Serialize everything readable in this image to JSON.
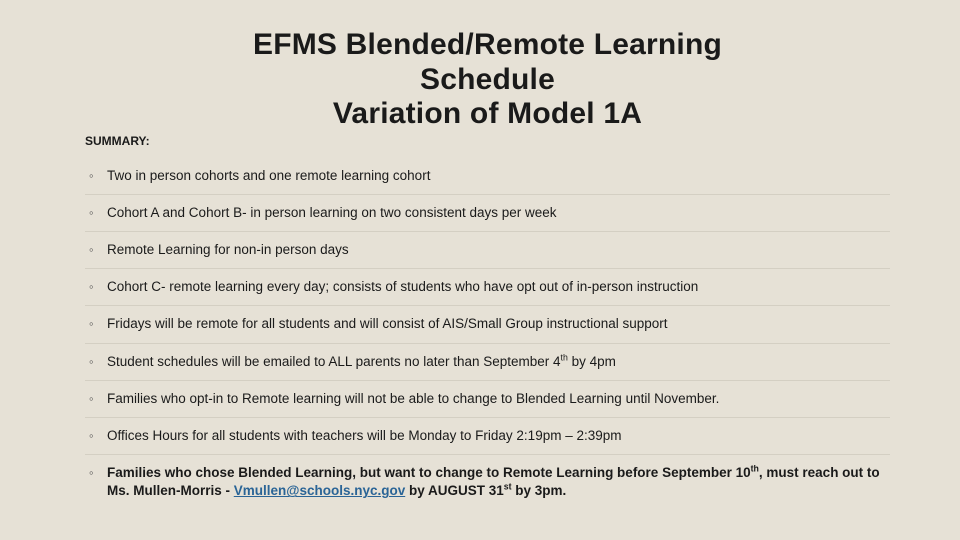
{
  "title": {
    "line1": "EFMS  Blended/Remote Learning",
    "line2": "Schedule",
    "line3": "Variation of Model 1A"
  },
  "summary_label": "SUMMARY:",
  "items": [
    "Two in person cohorts and one remote learning cohort",
    "Cohort A and Cohort B- in person learning on two consistent days per week",
    "Remote Learning for non-in person days",
    "Cohort C- remote learning every day; consists of students who have opt out of in-person instruction",
    "Fridays will be remote for all students and will consist of AIS/Small Group instructional support"
  ],
  "item_email": {
    "prefix": "Student schedules will be emailed to ALL parents no later than September 4",
    "sup": "th",
    "suffix": " by 4pm"
  },
  "item_optin": "Families who opt-in to Remote learning will not be able to change to Blended Learning until November.",
  "item_hours": "Offices Hours for all students with teachers will be Monday to Friday 2:19pm – 2:39pm",
  "item_bold": {
    "p1": "Families who chose Blended Learning, but want to change to Remote Learning before September 10",
    "sup1": "th",
    "p2": ", must reach out to Ms. Mullen-Morris - ",
    "email": "Vmullen@schools.nyc.gov",
    "p3": " by AUGUST 31",
    "sup2": "st",
    "p4": " by 3pm."
  },
  "colors": {
    "background": "#e6e1d6",
    "text": "#1a1a1a",
    "divider": "#d4cfc3",
    "link": "#2a6496"
  }
}
